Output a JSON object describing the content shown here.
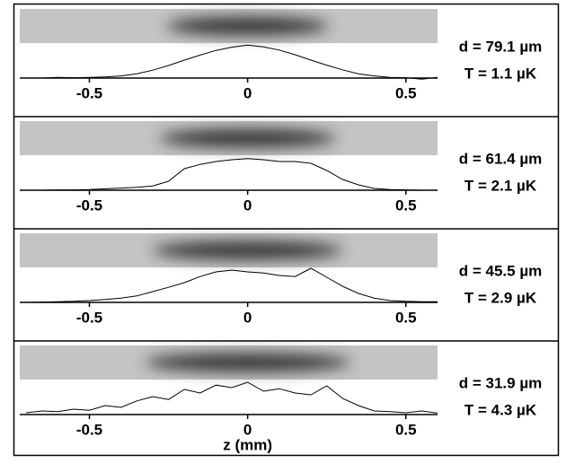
{
  "chart_data": [
    {
      "type": "line",
      "xlim": [
        -0.72,
        0.6
      ],
      "ylim": [
        0,
        1
      ],
      "xticks": [
        -0.5,
        0,
        0.5
      ],
      "x": [
        -0.7,
        -0.65,
        -0.6,
        -0.55,
        -0.5,
        -0.45,
        -0.4,
        -0.35,
        -0.3,
        -0.25,
        -0.2,
        -0.15,
        -0.1,
        -0.05,
        0,
        0.05,
        0.1,
        0.15,
        0.2,
        0.25,
        0.3,
        0.35,
        0.4,
        0.45,
        0.5,
        0.55,
        0.6
      ],
      "values": [
        0,
        0,
        0.02,
        0.01,
        0.02,
        0.03,
        0.06,
        0.12,
        0.22,
        0.35,
        0.5,
        0.64,
        0.77,
        0.86,
        0.92,
        0.87,
        0.78,
        0.65,
        0.5,
        0.36,
        0.23,
        0.12,
        0.06,
        0.02,
        0.01,
        -0.03,
        0.02
      ],
      "color": "#000000",
      "annotations": [
        "d = 79.1 µm",
        "T = 1.1 µK"
      ]
    },
    {
      "type": "line",
      "xlim": [
        -0.72,
        0.6
      ],
      "ylim": [
        0,
        1
      ],
      "xticks": [
        -0.5,
        0,
        0.5
      ],
      "x": [
        -0.7,
        -0.65,
        -0.6,
        -0.55,
        -0.5,
        -0.45,
        -0.4,
        -0.35,
        -0.3,
        -0.25,
        -0.2,
        -0.15,
        -0.1,
        -0.05,
        0,
        0.05,
        0.1,
        0.15,
        0.2,
        0.25,
        0.3,
        0.35,
        0.4,
        0.45,
        0.5,
        0.55,
        0.6
      ],
      "values": [
        0,
        0,
        0.01,
        0.01,
        0.02,
        0.04,
        0.06,
        0.08,
        0.12,
        0.25,
        0.6,
        0.72,
        0.8,
        0.85,
        0.88,
        0.85,
        0.8,
        0.8,
        0.75,
        0.55,
        0.3,
        0.15,
        0.05,
        0.02,
        0.01,
        0,
        0
      ],
      "color": "#000000",
      "annotations": [
        "d = 61.4 µm",
        "T = 2.1 µK"
      ]
    },
    {
      "type": "line",
      "xlim": [
        -0.72,
        0.6
      ],
      "ylim": [
        0,
        1
      ],
      "xticks": [
        -0.5,
        0,
        0.5
      ],
      "x": [
        -0.7,
        -0.65,
        -0.6,
        -0.55,
        -0.5,
        -0.45,
        -0.4,
        -0.35,
        -0.3,
        -0.25,
        -0.2,
        -0.15,
        -0.1,
        -0.05,
        0,
        0.05,
        0.1,
        0.15,
        0.2,
        0.25,
        0.3,
        0.35,
        0.4,
        0.45,
        0.5,
        0.55,
        0.6
      ],
      "values": [
        0,
        0.01,
        0.02,
        0.03,
        0.05,
        0.08,
        0.12,
        0.18,
        0.3,
        0.42,
        0.55,
        0.72,
        0.85,
        0.9,
        0.85,
        0.82,
        0.75,
        0.72,
        0.95,
        0.7,
        0.45,
        0.25,
        0.12,
        0.05,
        0.03,
        0.02,
        0.02
      ],
      "color": "#000000",
      "annotations": [
        "d = 45.5 µm",
        "T = 2.9 µK"
      ]
    },
    {
      "type": "line",
      "xlim": [
        -0.72,
        0.6
      ],
      "ylim": [
        0,
        1
      ],
      "xticks": [
        -0.5,
        0,
        0.5
      ],
      "x": [
        -0.7,
        -0.65,
        -0.6,
        -0.55,
        -0.5,
        -0.45,
        -0.4,
        -0.35,
        -0.3,
        -0.25,
        -0.2,
        -0.15,
        -0.1,
        -0.05,
        0,
        0.05,
        0.1,
        0.15,
        0.2,
        0.25,
        0.3,
        0.35,
        0.4,
        0.45,
        0.5,
        0.55,
        0.6
      ],
      "values": [
        0.05,
        0.1,
        0.08,
        0.15,
        0.12,
        0.25,
        0.2,
        0.38,
        0.5,
        0.42,
        0.7,
        0.6,
        0.82,
        0.75,
        0.9,
        0.65,
        0.72,
        0.6,
        0.55,
        0.8,
        0.45,
        0.25,
        0.1,
        0.08,
        0.05,
        0.1,
        0.04
      ],
      "color": "#000000",
      "annotations": [
        "d = 31.9 µm",
        "T = 4.3 µK"
      ],
      "xlabel": "z (mm)"
    }
  ]
}
